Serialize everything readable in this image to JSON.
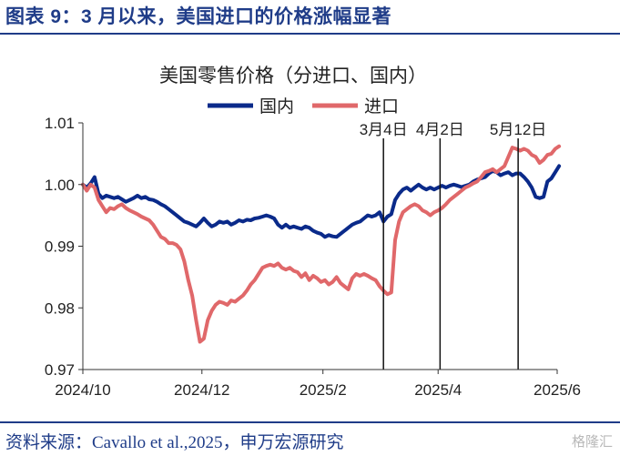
{
  "figure": {
    "title": "图表 9：3 月以来，美国进口的价格涨幅显著",
    "source": "资料来源：Cavallo et al.,2025，申万宏源研究",
    "watermark": "格隆汇"
  },
  "colors": {
    "domestic": "#0a2a8a",
    "imported": "#e0686a",
    "accent": "#1f3c88"
  },
  "chart_data": {
    "type": "line",
    "title": "美国零售价格（分进口、国内）",
    "xlabel": "",
    "ylabel": "",
    "x_start": "2024-10-01",
    "x_end": "2025-06-01",
    "x_ticks": [
      {
        "label": "2024/10",
        "t": 0
      },
      {
        "label": "2024/12",
        "t": 61
      },
      {
        "label": "2025/2",
        "t": 123
      },
      {
        "label": "2025/4",
        "t": 182
      },
      {
        "label": "2025/6",
        "t": 243
      }
    ],
    "ylim": [
      0.97,
      1.01
    ],
    "y_ticks": [
      {
        "label": "0.97",
        "v": 0.97
      },
      {
        "label": "0.98",
        "v": 0.98
      },
      {
        "label": "0.99",
        "v": 0.99
      },
      {
        "label": "1.00",
        "v": 1.0
      },
      {
        "label": "1.01",
        "v": 1.01
      }
    ],
    "legend_position": "top-center",
    "annotations": [
      {
        "label": "3月4日",
        "t": 154
      },
      {
        "label": "4月2日",
        "t": 183
      },
      {
        "label": "5月12日",
        "t": 223
      }
    ],
    "series": [
      {
        "name": "国内",
        "color": "#0a2a8a",
        "points": [
          [
            0,
            1.0
          ],
          [
            2,
            0.9995
          ],
          [
            4,
            1.0002
          ],
          [
            6,
            1.0012
          ],
          [
            8,
            0.9985
          ],
          [
            10,
            0.9978
          ],
          [
            12,
            0.9982
          ],
          [
            14,
            0.998
          ],
          [
            16,
            0.9978
          ],
          [
            18,
            0.998
          ],
          [
            20,
            0.9976
          ],
          [
            22,
            0.9972
          ],
          [
            24,
            0.9975
          ],
          [
            26,
            0.9978
          ],
          [
            28,
            0.9982
          ],
          [
            30,
            0.9978
          ],
          [
            32,
            0.998
          ],
          [
            34,
            0.9976
          ],
          [
            36,
            0.9975
          ],
          [
            38,
            0.9972
          ],
          [
            40,
            0.9968
          ],
          [
            42,
            0.9965
          ],
          [
            44,
            0.996
          ],
          [
            46,
            0.9955
          ],
          [
            48,
            0.995
          ],
          [
            50,
            0.9945
          ],
          [
            52,
            0.994
          ],
          [
            54,
            0.9938
          ],
          [
            56,
            0.9935
          ],
          [
            58,
            0.9932
          ],
          [
            60,
            0.9938
          ],
          [
            62,
            0.9945
          ],
          [
            64,
            0.9938
          ],
          [
            66,
            0.9932
          ],
          [
            68,
            0.9935
          ],
          [
            70,
            0.994
          ],
          [
            72,
            0.9938
          ],
          [
            74,
            0.994
          ],
          [
            76,
            0.9935
          ],
          [
            78,
            0.9938
          ],
          [
            80,
            0.9942
          ],
          [
            82,
            0.994
          ],
          [
            84,
            0.9943
          ],
          [
            86,
            0.9942
          ],
          [
            88,
            0.9945
          ],
          [
            90,
            0.9946
          ],
          [
            92,
            0.9948
          ],
          [
            94,
            0.995
          ],
          [
            96,
            0.9948
          ],
          [
            98,
            0.9945
          ],
          [
            100,
            0.9935
          ],
          [
            102,
            0.993
          ],
          [
            104,
            0.9935
          ],
          [
            106,
            0.993
          ],
          [
            108,
            0.9932
          ],
          [
            110,
            0.993
          ],
          [
            112,
            0.9928
          ],
          [
            114,
            0.9932
          ],
          [
            116,
            0.993
          ],
          [
            118,
            0.9925
          ],
          [
            120,
            0.9922
          ],
          [
            122,
            0.992
          ],
          [
            124,
            0.9915
          ],
          [
            126,
            0.9918
          ],
          [
            128,
            0.9916
          ],
          [
            130,
            0.9915
          ],
          [
            132,
            0.992
          ],
          [
            134,
            0.9925
          ],
          [
            136,
            0.993
          ],
          [
            138,
            0.9935
          ],
          [
            140,
            0.9938
          ],
          [
            142,
            0.994
          ],
          [
            144,
            0.9945
          ],
          [
            146,
            0.995
          ],
          [
            148,
            0.9948
          ],
          [
            150,
            0.995
          ],
          [
            152,
            0.9955
          ],
          [
            154,
            0.994
          ],
          [
            156,
            0.9948
          ],
          [
            158,
            0.9952
          ],
          [
            160,
            0.9975
          ],
          [
            162,
            0.9985
          ],
          [
            164,
            0.9992
          ],
          [
            166,
            0.9995
          ],
          [
            168,
            0.999
          ],
          [
            170,
            0.9995
          ],
          [
            172,
            1.0
          ],
          [
            174,
            0.9995
          ],
          [
            176,
            0.9992
          ],
          [
            178,
            0.9995
          ],
          [
            180,
            0.9992
          ],
          [
            182,
            0.9995
          ],
          [
            184,
            0.9998
          ],
          [
            186,
            0.9995
          ],
          [
            188,
            0.9998
          ],
          [
            190,
            1.0
          ],
          [
            192,
            0.9998
          ],
          [
            194,
            0.9996
          ],
          [
            196,
            0.9998
          ],
          [
            198,
            1.0
          ],
          [
            200,
            1.0005
          ],
          [
            202,
            1.0008
          ],
          [
            204,
            1.001
          ],
          [
            206,
            1.0012
          ],
          [
            208,
            1.0018
          ],
          [
            210,
            1.0022
          ],
          [
            212,
            1.002
          ],
          [
            214,
            1.0015
          ],
          [
            216,
            1.0018
          ],
          [
            218,
            1.002
          ],
          [
            220,
            1.0015
          ],
          [
            222,
            1.0018
          ],
          [
            224,
            1.0018
          ],
          [
            226,
            1.0012
          ],
          [
            228,
            1.0005
          ],
          [
            230,
            0.9995
          ],
          [
            232,
            0.998
          ],
          [
            234,
            0.9978
          ],
          [
            236,
            0.998
          ],
          [
            238,
            1.0005
          ],
          [
            240,
            1.001
          ],
          [
            242,
            1.002
          ],
          [
            244,
            1.003
          ]
        ]
      },
      {
        "name": "进口",
        "color": "#e0686a",
        "points": [
          [
            0,
            1.0
          ],
          [
            2,
            0.999
          ],
          [
            4,
            1.0
          ],
          [
            6,
            0.9995
          ],
          [
            8,
            0.9975
          ],
          [
            10,
            0.9965
          ],
          [
            12,
            0.9955
          ],
          [
            14,
            0.9962
          ],
          [
            16,
            0.996
          ],
          [
            18,
            0.9965
          ],
          [
            20,
            0.9968
          ],
          [
            22,
            0.9962
          ],
          [
            24,
            0.9958
          ],
          [
            26,
            0.9955
          ],
          [
            28,
            0.9952
          ],
          [
            30,
            0.9948
          ],
          [
            32,
            0.9945
          ],
          [
            34,
            0.9942
          ],
          [
            36,
            0.9935
          ],
          [
            38,
            0.9925
          ],
          [
            40,
            0.9915
          ],
          [
            42,
            0.9912
          ],
          [
            44,
            0.9905
          ],
          [
            46,
            0.9905
          ],
          [
            48,
            0.9902
          ],
          [
            50,
            0.9895
          ],
          [
            52,
            0.9875
          ],
          [
            54,
            0.9845
          ],
          [
            56,
            0.982
          ],
          [
            58,
            0.978
          ],
          [
            60,
            0.9745
          ],
          [
            62,
            0.975
          ],
          [
            64,
            0.978
          ],
          [
            66,
            0.9795
          ],
          [
            68,
            0.9805
          ],
          [
            70,
            0.981
          ],
          [
            72,
            0.9808
          ],
          [
            74,
            0.9805
          ],
          [
            76,
            0.9812
          ],
          [
            78,
            0.981
          ],
          [
            80,
            0.9815
          ],
          [
            82,
            0.982
          ],
          [
            84,
            0.9828
          ],
          [
            86,
            0.9838
          ],
          [
            88,
            0.9845
          ],
          [
            90,
            0.9855
          ],
          [
            92,
            0.9865
          ],
          [
            94,
            0.9868
          ],
          [
            96,
            0.987
          ],
          [
            98,
            0.9868
          ],
          [
            100,
            0.9872
          ],
          [
            102,
            0.9865
          ],
          [
            104,
            0.9862
          ],
          [
            106,
            0.9865
          ],
          [
            108,
            0.986
          ],
          [
            110,
            0.9858
          ],
          [
            112,
            0.985
          ],
          [
            114,
            0.9856
          ],
          [
            116,
            0.9845
          ],
          [
            118,
            0.9852
          ],
          [
            120,
            0.9848
          ],
          [
            122,
            0.9842
          ],
          [
            124,
            0.9845
          ],
          [
            126,
            0.9838
          ],
          [
            128,
            0.9842
          ],
          [
            130,
            0.985
          ],
          [
            132,
            0.984
          ],
          [
            134,
            0.9835
          ],
          [
            136,
            0.983
          ],
          [
            138,
            0.9848
          ],
          [
            140,
            0.9855
          ],
          [
            142,
            0.9852
          ],
          [
            144,
            0.9855
          ],
          [
            146,
            0.9852
          ],
          [
            148,
            0.9848
          ],
          [
            150,
            0.9845
          ],
          [
            152,
            0.9835
          ],
          [
            154,
            0.9828
          ],
          [
            156,
            0.9822
          ],
          [
            158,
            0.9825
          ],
          [
            160,
            0.991
          ],
          [
            162,
            0.994
          ],
          [
            164,
            0.9955
          ],
          [
            166,
            0.996
          ],
          [
            168,
            0.9965
          ],
          [
            170,
            0.9968
          ],
          [
            172,
            0.9965
          ],
          [
            174,
            0.9958
          ],
          [
            176,
            0.9955
          ],
          [
            178,
            0.995
          ],
          [
            180,
            0.9955
          ],
          [
            182,
            0.9958
          ],
          [
            184,
            0.9962
          ],
          [
            186,
            0.9968
          ],
          [
            188,
            0.9975
          ],
          [
            190,
            0.998
          ],
          [
            192,
            0.9985
          ],
          [
            194,
            0.999
          ],
          [
            196,
            0.9995
          ],
          [
            198,
            0.9998
          ],
          [
            200,
            1.0002
          ],
          [
            202,
            1.0005
          ],
          [
            204,
            1.0012
          ],
          [
            206,
            1.002
          ],
          [
            208,
            1.0022
          ],
          [
            210,
            1.0025
          ],
          [
            212,
            1.002
          ],
          [
            214,
            1.0025
          ],
          [
            216,
            1.003
          ],
          [
            218,
            1.0045
          ],
          [
            220,
            1.006
          ],
          [
            222,
            1.0058
          ],
          [
            224,
            1.0055
          ],
          [
            226,
            1.0058
          ],
          [
            228,
            1.0055
          ],
          [
            230,
            1.0048
          ],
          [
            232,
            1.0045
          ],
          [
            234,
            1.0035
          ],
          [
            236,
            1.004
          ],
          [
            238,
            1.0048
          ],
          [
            240,
            1.005
          ],
          [
            242,
            1.0058
          ],
          [
            244,
            1.0062
          ]
        ]
      }
    ]
  }
}
